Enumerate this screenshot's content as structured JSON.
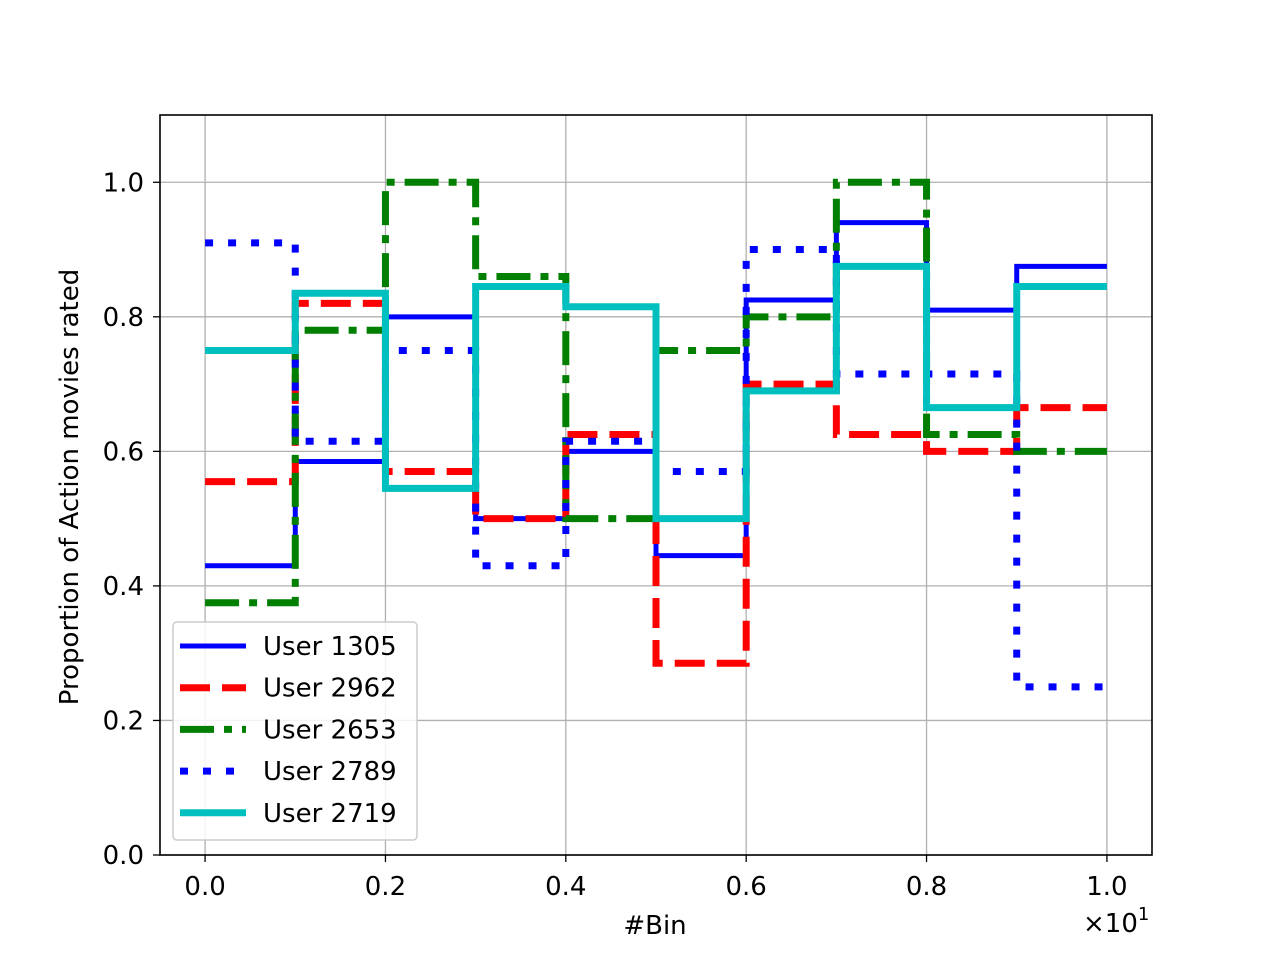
{
  "chart_data": {
    "type": "line",
    "title": "",
    "xlabel": "#Bin",
    "ylabel": "Proportion of Action movies rated",
    "x_offset_label": "×10",
    "x_offset_exponent": "1",
    "xlim": [
      -0.5,
      10.5
    ],
    "ylim": [
      0,
      1.1
    ],
    "xticks": [
      0,
      2,
      4,
      6,
      8,
      10
    ],
    "xtick_labels": [
      "0.0",
      "0.2",
      "0.4",
      "0.6",
      "0.8",
      "1.0"
    ],
    "yticks": [
      0,
      0.2,
      0.4,
      0.6,
      0.8,
      1.0
    ],
    "ytick_labels": [
      "0.0",
      "0.2",
      "0.4",
      "0.6",
      "0.8",
      "1.0"
    ],
    "grid": true,
    "legend_position": "lower-left",
    "step": "post",
    "x": [
      0,
      1,
      2,
      3,
      4,
      5,
      6,
      7,
      8,
      9,
      10
    ],
    "series": [
      {
        "name": "User 1305",
        "color": "#0000ff",
        "style": "solid",
        "width": 5,
        "values": [
          0.43,
          0.585,
          0.8,
          0.5,
          0.6,
          0.445,
          0.825,
          0.94,
          0.81,
          0.875,
          0.875
        ]
      },
      {
        "name": "User 2962",
        "color": "#ff0000",
        "style": "dashed",
        "width": 7,
        "values": [
          0.555,
          0.82,
          0.57,
          0.5,
          0.625,
          0.285,
          0.7,
          0.625,
          0.6,
          0.665,
          0.665
        ]
      },
      {
        "name": "User 2653",
        "color": "#007f00",
        "style": "dashdot",
        "width": 7,
        "values": [
          0.375,
          0.78,
          1.0,
          0.86,
          0.5,
          0.75,
          0.8,
          1.0,
          0.625,
          0.6,
          0.6
        ]
      },
      {
        "name": "User 2789",
        "color": "#0000ff",
        "style": "dotted",
        "width": 7,
        "values": [
          0.91,
          0.615,
          0.75,
          0.43,
          0.615,
          0.57,
          0.9,
          0.715,
          0.715,
          0.25,
          0.25
        ]
      },
      {
        "name": "User 2719",
        "color": "#00bfbf",
        "style": "solid",
        "width": 7,
        "values": [
          0.75,
          0.835,
          0.545,
          0.845,
          0.815,
          0.5,
          0.69,
          0.875,
          0.665,
          0.845,
          0.845
        ]
      }
    ]
  }
}
